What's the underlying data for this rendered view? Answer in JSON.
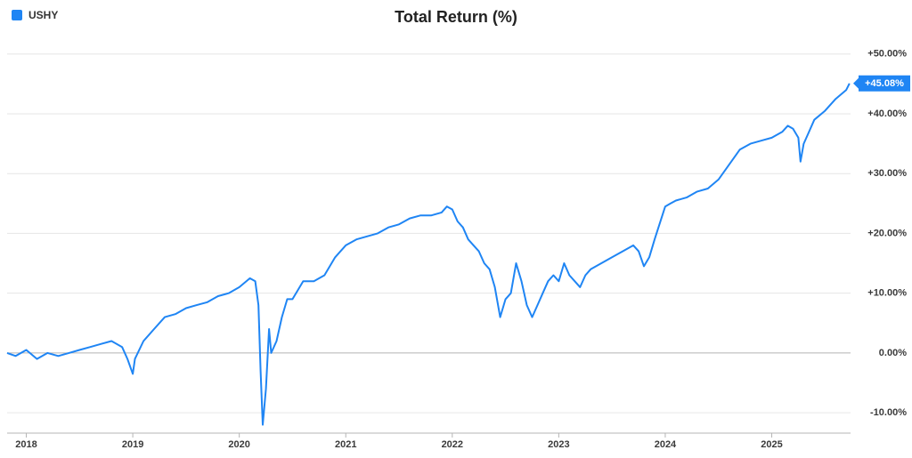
{
  "chart_data": {
    "type": "line",
    "title": "Total Return (%)",
    "xlim": [
      2017.82,
      2025.74
    ],
    "xticks": [
      2018,
      2019,
      2020,
      2021,
      2022,
      2023,
      2024,
      2025
    ],
    "ylim": [
      -13.4,
      51
    ],
    "yticks": [
      {
        "value": -10,
        "label": "-10.00%"
      },
      {
        "value": 0,
        "label": "0.00%"
      },
      {
        "value": 10,
        "label": "+10.00%"
      },
      {
        "value": 20,
        "label": "+20.00%"
      },
      {
        "value": 30,
        "label": "+30.00%"
      },
      {
        "value": 40,
        "label": "+40.00%"
      },
      {
        "value": 50,
        "label": "+50.00%"
      }
    ],
    "grid": true,
    "legend": "top-left",
    "end_label": {
      "value": 45.08,
      "label": "+45.08%"
    },
    "series": [
      {
        "name": "USHY",
        "color": "#1f85f4",
        "x": [
          2017.82,
          2017.9,
          2018.0,
          2018.1,
          2018.2,
          2018.3,
          2018.4,
          2018.5,
          2018.6,
          2018.7,
          2018.8,
          2018.9,
          2018.95,
          2019.0,
          2019.02,
          2019.1,
          2019.2,
          2019.3,
          2019.4,
          2019.5,
          2019.6,
          2019.7,
          2019.8,
          2019.9,
          2020.0,
          2020.1,
          2020.15,
          2020.18,
          2020.2,
          2020.22,
          2020.25,
          2020.28,
          2020.3,
          2020.35,
          2020.4,
          2020.45,
          2020.5,
          2020.6,
          2020.7,
          2020.8,
          2020.9,
          2021.0,
          2021.1,
          2021.2,
          2021.3,
          2021.4,
          2021.5,
          2021.6,
          2021.7,
          2021.8,
          2021.9,
          2021.95,
          2022.0,
          2022.05,
          2022.1,
          2022.15,
          2022.2,
          2022.25,
          2022.3,
          2022.35,
          2022.4,
          2022.45,
          2022.5,
          2022.55,
          2022.6,
          2022.65,
          2022.7,
          2022.75,
          2022.8,
          2022.85,
          2022.9,
          2022.95,
          2023.0,
          2023.05,
          2023.1,
          2023.15,
          2023.2,
          2023.25,
          2023.3,
          2023.4,
          2023.5,
          2023.6,
          2023.7,
          2023.75,
          2023.8,
          2023.85,
          2023.9,
          2024.0,
          2024.05,
          2024.1,
          2024.2,
          2024.3,
          2024.4,
          2024.5,
          2024.6,
          2024.7,
          2024.8,
          2024.9,
          2025.0,
          2025.1,
          2025.15,
          2025.2,
          2025.25,
          2025.27,
          2025.3,
          2025.35,
          2025.4,
          2025.5,
          2025.6,
          2025.7,
          2025.73
        ],
        "values": [
          0,
          -0.5,
          0.5,
          -1,
          0,
          -0.5,
          0,
          0.5,
          1,
          1.5,
          2,
          1,
          -1,
          -3.5,
          -1,
          2,
          4,
          6,
          6.5,
          7.5,
          8,
          8.5,
          9.5,
          10,
          11,
          12.5,
          12,
          8,
          -3,
          -12,
          -6,
          4,
          0,
          2,
          6,
          9,
          9,
          12,
          12,
          13,
          16,
          18,
          19,
          19.5,
          20,
          21,
          21.5,
          22.5,
          23,
          23,
          23.5,
          24.5,
          24,
          22,
          21,
          19,
          18,
          17,
          15,
          14,
          11,
          6,
          9,
          10,
          15,
          12,
          8,
          6,
          8,
          10,
          12,
          13,
          12,
          15,
          13,
          12,
          11,
          13,
          14,
          15,
          16,
          17,
          18,
          17,
          14.5,
          16,
          19,
          24.5,
          25,
          25.5,
          26,
          27,
          27.5,
          29,
          31.5,
          34,
          35,
          35.5,
          36,
          37,
          38,
          37.5,
          36,
          32,
          35,
          37,
          39,
          40.5,
          42.5,
          44,
          45.08
        ]
      }
    ]
  }
}
